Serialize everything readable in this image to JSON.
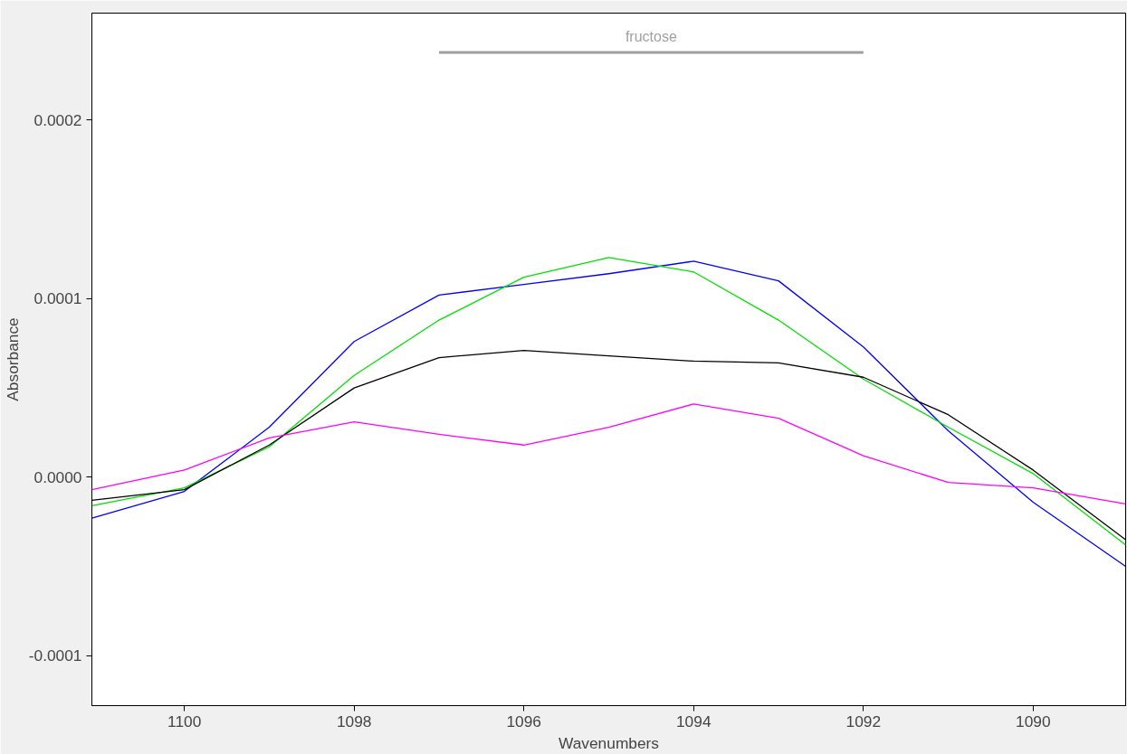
{
  "chart_data": {
    "type": "line",
    "xlabel": "Wavenumbers",
    "ylabel": "Absorbance",
    "x": [
      1101.09,
      1100,
      1099,
      1098,
      1097,
      1096,
      1095,
      1094,
      1093,
      1092,
      1091,
      1090,
      1088.91
    ],
    "series": [
      {
        "color": "#0000ff",
        "values": [
          -2.3e-05,
          -8e-06,
          2.8e-05,
          7.6e-05,
          0.000102,
          0.000108,
          0.000114,
          0.000121,
          0.00011,
          7.3e-05,
          2.6e-05,
          -1.4e-05,
          -5e-05
        ]
      },
      {
        "color": "#00e000",
        "values": [
          -1.6e-05,
          -6e-06,
          1.7e-05,
          5.7e-05,
          8.8e-05,
          0.000112,
          0.000123,
          0.000115,
          8.8e-05,
          5.5e-05,
          2.8e-05,
          2e-06,
          -3.8e-05
        ]
      },
      {
        "color": "#000000",
        "values": [
          -1.3e-05,
          -7e-06,
          1.8e-05,
          5e-05,
          6.7e-05,
          7.1e-05,
          6.8e-05,
          6.5e-05,
          6.4e-05,
          5.6e-05,
          3.5e-05,
          4e-06,
          -3.5e-05
        ]
      },
      {
        "color": "#ff00ff",
        "values": [
          -7e-06,
          4e-06,
          2.2e-05,
          3.1e-05,
          2.4e-05,
          1.8e-05,
          2.8e-05,
          4.1e-05,
          3.3e-05,
          1.2e-05,
          -3e-06,
          -6e-06,
          -1.5e-05
        ]
      },
      {
        "name": "fructose",
        "color": "#a0a0a0",
        "x": [
          1097,
          1092
        ],
        "values": [
          0.000238,
          0.000238
        ]
      }
    ],
    "xlim": [
      1101.09,
      1088.91
    ],
    "ylim": [
      -0.000128,
      0.00026
    ],
    "xticks": [
      1100,
      1098,
      1096,
      1094,
      1092,
      1090
    ],
    "yticks": [
      {
        "value": -0.0001,
        "label": "-0.0001"
      },
      {
        "value": 0,
        "label": "0.0000"
      },
      {
        "value": 0.0001,
        "label": "0.0001"
      },
      {
        "value": 0.0002,
        "label": "0.0002"
      }
    ],
    "grid": false,
    "legend": false,
    "marker": "none",
    "line_style": "solid"
  }
}
